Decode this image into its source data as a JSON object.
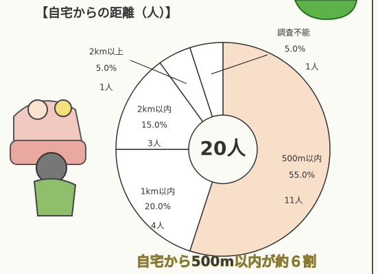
{
  "chart_data": {
    "type": "donut",
    "title": "【自宅からの距離（人）】",
    "center_label": "20人",
    "caption": "自宅から500m以内が約６割",
    "categories": [
      "500m以内",
      "1km以内",
      "2km以内",
      "2km以上",
      "調査不能"
    ],
    "values": [
      55,
      20,
      15,
      5,
      5
    ],
    "value_labels": [
      "55.0%",
      "20.0%",
      "15.0%",
      "5.0%",
      "5.0%"
    ],
    "count_labels": [
      "11人",
      "4人",
      "3人",
      "1人",
      "1人"
    ],
    "colors": [
      "#f8dfca",
      "#ffffff",
      "#ffffff",
      "#ffffff",
      "#ffffff"
    ]
  }
}
